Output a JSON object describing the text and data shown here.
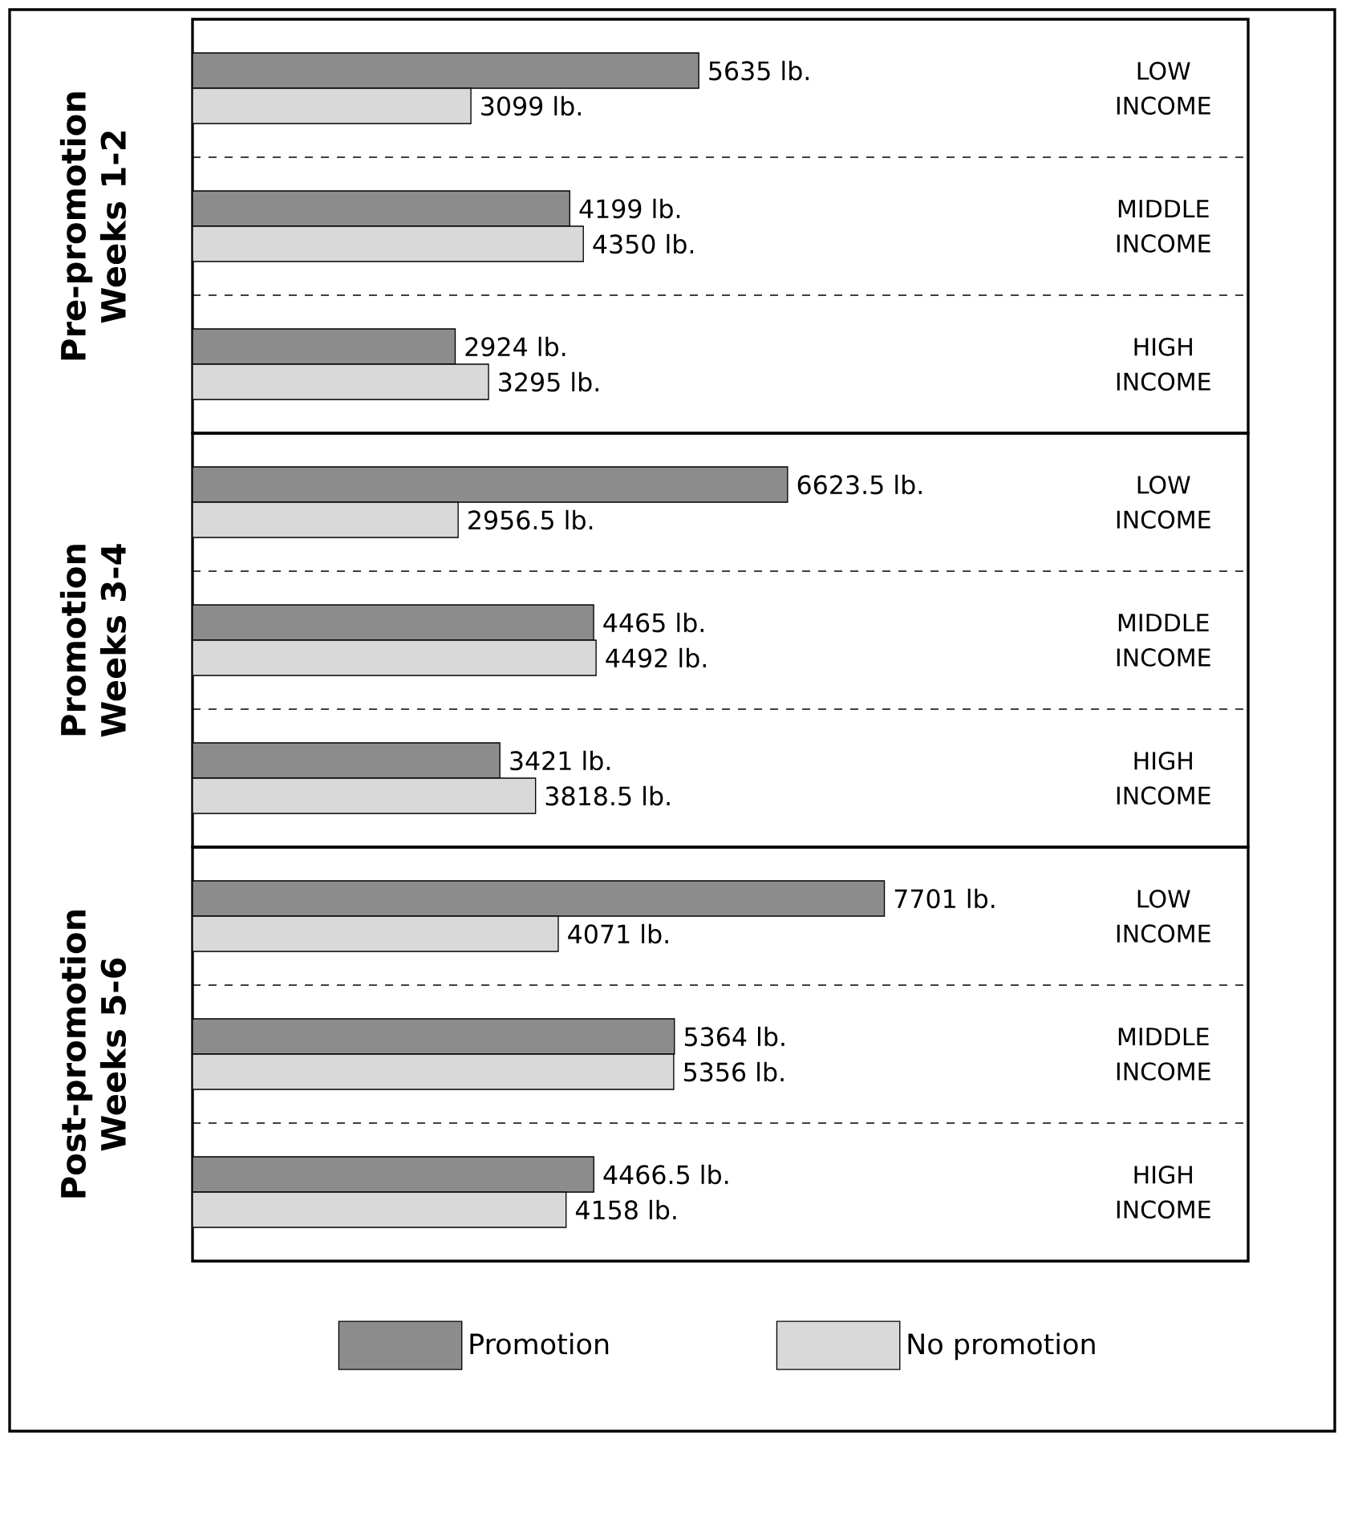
{
  "chart_data": [
    {
      "type": "bar",
      "orientation": "horizontal",
      "title": "Pre-promotion",
      "subtitle": "Weeks 1-2",
      "categories": [
        "LOW INCOME",
        "MIDDLE INCOME",
        "HIGH INCOME"
      ],
      "xlim": [
        0,
        11750
      ],
      "grid": "y",
      "series": [
        {
          "color": "#8c8c8c",
          "values": [
            5635,
            4199,
            2924
          ],
          "value_labels": [
            "5635 lb.",
            "4199 lb.",
            "2924 lb."
          ]
        },
        {
          "color": "#d9d9d9",
          "values": [
            3099,
            4350,
            3295
          ],
          "value_labels": [
            "3099 lb.",
            "4350 lb.",
            "3295 lb."
          ]
        }
      ]
    },
    {
      "type": "bar",
      "orientation": "horizontal",
      "title": "Promotion",
      "subtitle": "Weeks 3-4",
      "categories": [
        "LOW INCOME",
        "MIDDLE INCOME",
        "HIGH INCOME"
      ],
      "xlim": [
        0,
        11750
      ],
      "grid": "y",
      "series": [
        {
          "color": "#8c8c8c",
          "values": [
            6623.5,
            4465,
            3421
          ],
          "value_labels": [
            "6623.5 lb.",
            "4465 lb.",
            "3421 lb."
          ]
        },
        {
          "color": "#d9d9d9",
          "values": [
            2956.5,
            4492,
            3818.5
          ],
          "value_labels": [
            "2956.5 lb.",
            "4492 lb.",
            "3818.5 lb."
          ]
        }
      ]
    },
    {
      "type": "bar",
      "orientation": "horizontal",
      "title": "Post-promotion",
      "subtitle": "Weeks 5-6",
      "categories": [
        "LOW INCOME",
        "MIDDLE INCOME",
        "HIGH INCOME"
      ],
      "xlim": [
        0,
        11750
      ],
      "grid": "y",
      "legend": "bottom",
      "series": [
        {
          "name": "Promotion",
          "color": "#8c8c8c",
          "values": [
            7701,
            5364,
            4466.5
          ],
          "value_labels": [
            "7701 lb.",
            "5364 lb.",
            "4466.5 lb."
          ]
        },
        {
          "name": "No promotion",
          "color": "#d9d9d9",
          "values": [
            4071,
            5356,
            4158
          ],
          "value_labels": [
            "4071 lb.",
            "5356 lb.",
            "4158 lb."
          ]
        }
      ]
    }
  ]
}
